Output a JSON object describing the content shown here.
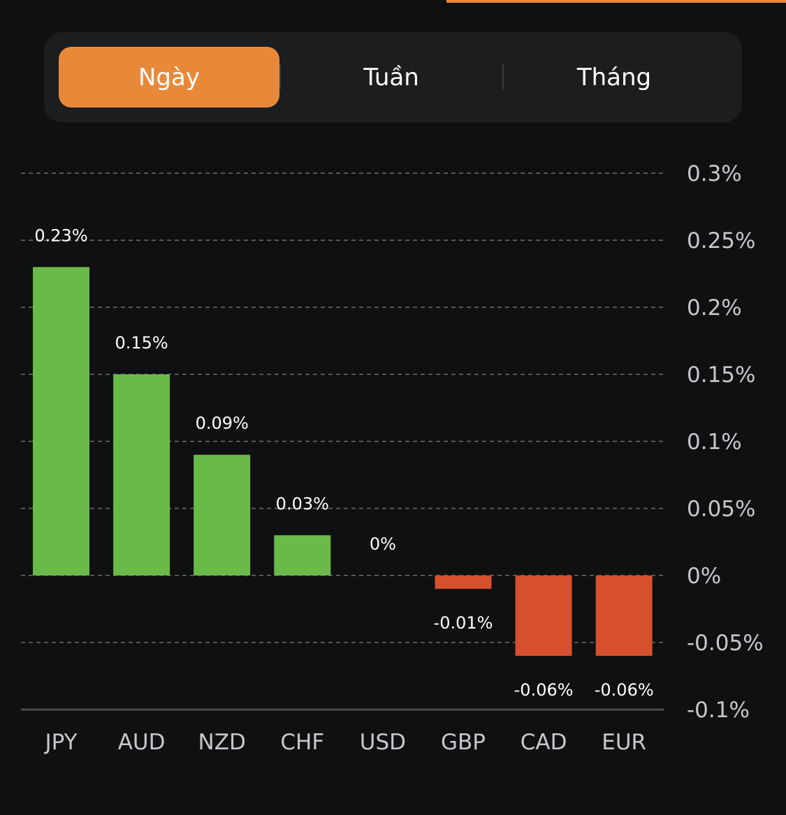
{
  "tabs": {
    "items": [
      {
        "label": "Ngày",
        "active": true
      },
      {
        "label": "Tuần",
        "active": false
      },
      {
        "label": "Tháng",
        "active": false
      }
    ]
  },
  "colors": {
    "accent": "#e8893a",
    "positive": "#6aba4a",
    "negative": "#d6502e",
    "background": "#0f1012"
  },
  "chart_data": {
    "type": "bar",
    "title": "",
    "xlabel": "",
    "ylabel": "",
    "categories": [
      "JPY",
      "AUD",
      "NZD",
      "CHF",
      "USD",
      "GBP",
      "CAD",
      "EUR"
    ],
    "values": [
      0.23,
      0.15,
      0.09,
      0.03,
      0,
      -0.01,
      -0.06,
      -0.06
    ],
    "data_labels": [
      "0.23%",
      "0.15%",
      "0.09%",
      "0.03%",
      "0%",
      "-0.01%",
      "-0.06%",
      "-0.06%"
    ],
    "ylim": [
      -0.1,
      0.3
    ],
    "yticks": [
      0.3,
      0.25,
      0.2,
      0.15,
      0.1,
      0.05,
      0,
      -0.05,
      -0.1
    ],
    "ytick_labels": [
      "0.3%",
      "0.25%",
      "0.2%",
      "0.15%",
      "0.1%",
      "0.05%",
      "0%",
      "-0.05%",
      "-0.1%"
    ],
    "y_axis_position": "right",
    "grid": true,
    "unit": "%"
  }
}
